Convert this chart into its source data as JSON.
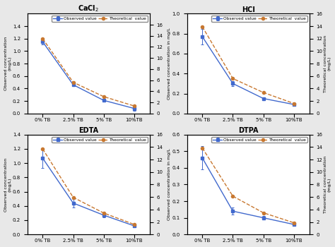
{
  "subplots": [
    {
      "title": "CaCl2",
      "x_labels": [
        "0% TB",
        "2.5% TB",
        "5% TB",
        "10%TB"
      ],
      "observed": [
        1.15,
        0.46,
        0.21,
        0.08
      ],
      "theoretical": [
        1.2,
        0.5,
        0.27,
        0.12
      ],
      "observed_err": [
        0.04,
        0.02,
        0.02,
        0.04
      ],
      "ylim_left": [
        0,
        1.6
      ],
      "ylim_right": [
        0,
        18
      ],
      "yticks_left": [
        0,
        0.2,
        0.4,
        0.6,
        0.8,
        1.0,
        1.2,
        1.4
      ],
      "yticks_right": [
        0,
        2,
        4,
        6,
        8,
        10,
        12,
        14,
        16
      ],
      "left_ylabel": "Observed concentration (mg/L)",
      "show_right_ylabel": false
    },
    {
      "title": "HCl",
      "x_labels": [
        "0% TB",
        "2.5% TB",
        "5% TB",
        "10%TB"
      ],
      "observed": [
        0.77,
        0.3,
        0.15,
        0.09
      ],
      "theoretical": [
        0.87,
        0.35,
        0.21,
        0.1
      ],
      "observed_err": [
        0.08,
        0.025,
        0.01,
        0.005
      ],
      "ylim_left": [
        0,
        1.0
      ],
      "ylim_right": [
        0,
        16
      ],
      "yticks_left": [
        0,
        0.2,
        0.4,
        0.6,
        0.8,
        1.0
      ],
      "yticks_right": [
        0,
        2,
        4,
        6,
        8,
        10,
        12,
        14,
        16
      ],
      "left_ylabel": "Observed concentration in mg/L",
      "show_right_ylabel": true
    },
    {
      "title": "EDTA",
      "x_labels": [
        "0% TB",
        "2.5% TB",
        "5% TB",
        "10%TB"
      ],
      "observed": [
        1.07,
        0.44,
        0.27,
        0.12
      ],
      "theoretical": [
        1.2,
        0.52,
        0.3,
        0.14
      ],
      "observed_err": [
        0.14,
        0.06,
        0.03,
        0.01
      ],
      "ylim_left": [
        0,
        1.4
      ],
      "ylim_right": [
        0,
        16
      ],
      "yticks_left": [
        0,
        0.2,
        0.4,
        0.6,
        0.8,
        1.0,
        1.2,
        1.4
      ],
      "yticks_right": [
        0,
        2,
        4,
        6,
        8,
        10,
        12,
        14,
        16
      ],
      "left_ylabel": "Observed concentration in mg/L",
      "show_right_ylabel": false
    },
    {
      "title": "DTPA",
      "x_labels": [
        "0% TB",
        "2.5% TB",
        "5% TB",
        "10%TB"
      ],
      "observed": [
        0.46,
        0.14,
        0.1,
        0.06
      ],
      "theoretical": [
        0.52,
        0.23,
        0.13,
        0.07
      ],
      "observed_err": [
        0.07,
        0.02,
        0.01,
        0.005
      ],
      "ylim_left": [
        0,
        0.6
      ],
      "ylim_right": [
        0,
        16
      ],
      "yticks_left": [
        0,
        0.1,
        0.2,
        0.3,
        0.4,
        0.5,
        0.6
      ],
      "yticks_right": [
        0,
        2,
        4,
        6,
        8,
        10,
        12,
        14,
        16
      ],
      "left_ylabel": "Observed concentration in mg/L",
      "show_right_ylabel": true
    }
  ],
  "observed_color": "#4169cd",
  "theoretical_color": "#c87830",
  "background_color": "#e8e8e8",
  "right_ylabel": "Theoretical concentration (mg/L)",
  "legend_labels": [
    "Observed value",
    "Theoretical  value"
  ]
}
